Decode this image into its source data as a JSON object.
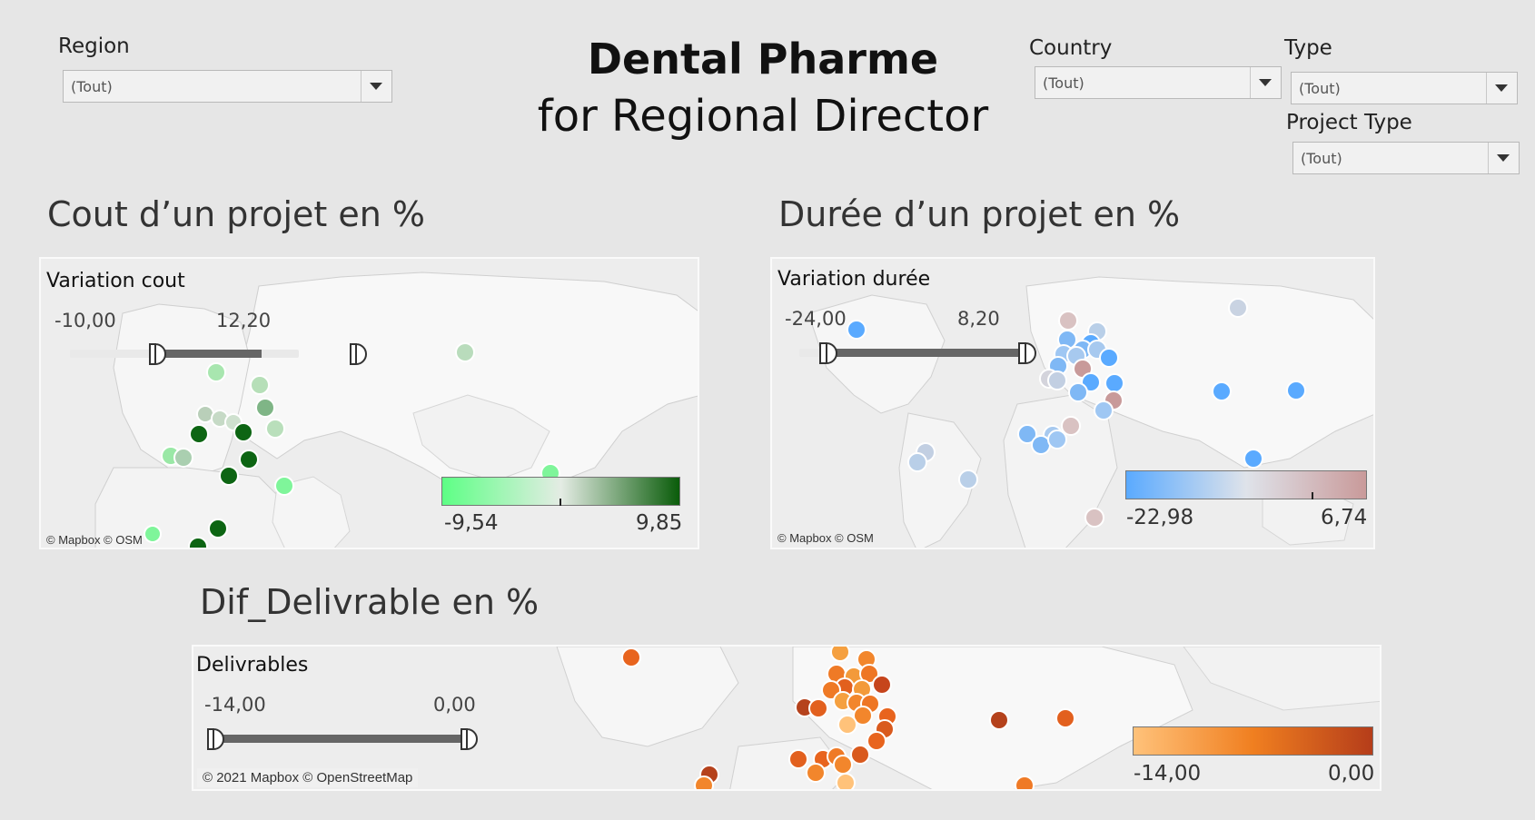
{
  "header": {
    "title_line1": "Dental Pharme",
    "title_line2": "for Regional Director"
  },
  "filters": {
    "region": {
      "label": "Region",
      "value": "(Tout)"
    },
    "country": {
      "label": "Country",
      "value": "(Tout)"
    },
    "type": {
      "label": "Type",
      "value": "(Tout)"
    },
    "project_type": {
      "label": "Project Type",
      "value": "(Tout)"
    }
  },
  "sections": {
    "cost": {
      "title": "Cout d’un projet en %",
      "legend_title": "Variation cout",
      "slider_min": "-10,00",
      "slider_max": "12,20",
      "gradient_min": "-9,54",
      "gradient_max": "9,85",
      "gradient_colors": [
        "#5dff85",
        "#e4ece4",
        "#0a5c0a"
      ],
      "attribution": "© Mapbox © OSM"
    },
    "duration": {
      "title": "Durée d’un projet en %",
      "legend_title": "Variation durée",
      "slider_min": "-24,00",
      "slider_max": "8,20",
      "gradient_min": "-22,98",
      "gradient_max": "6,74",
      "gradient_colors": [
        "#5aaaff",
        "#dfe3ea",
        "#c99a9a"
      ],
      "attribution": "© Mapbox © OSM"
    },
    "deliverables": {
      "title": "Dif_Delivrable en %",
      "legend_title": "Delivrables",
      "slider_min": "-14,00",
      "slider_max": "0,00",
      "gradient_min": "-14,00",
      "gradient_max": "0,00",
      "gradient_colors": [
        "#ffc27a",
        "#f07f20",
        "#b53d1a"
      ],
      "attribution": "© 2021 Mapbox © OpenStreetMap"
    }
  }
}
